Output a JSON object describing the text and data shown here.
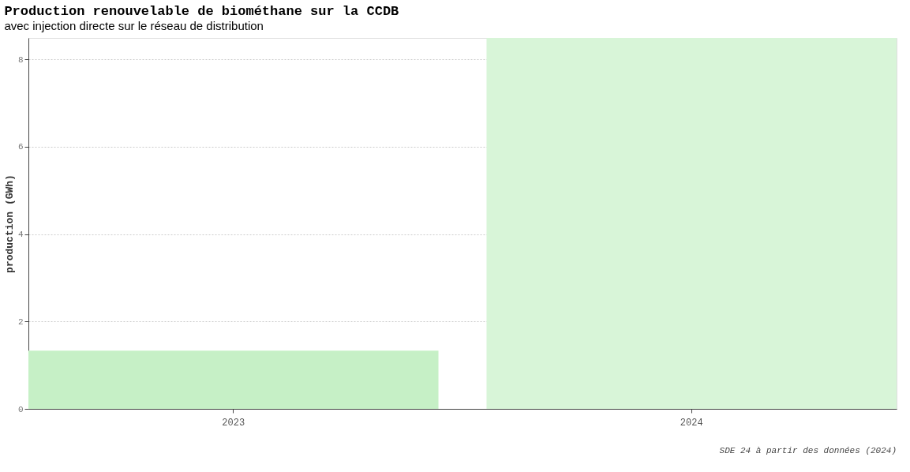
{
  "chart_data": {
    "type": "bar",
    "title": "Production renouvelable de biométhane sur la CCDB",
    "subtitle": "avec injection directe sur le réseau de distribution",
    "ylabel": "production (GWh)",
    "categories": [
      "2023",
      "2024"
    ],
    "values": [
      1.33,
      8.49
    ],
    "colors": [
      "#c6f0c6",
      "#d8f5d8"
    ],
    "ylim": [
      0,
      8.49
    ],
    "yticks": [
      0,
      2,
      4,
      6,
      8
    ],
    "grid": "y",
    "annotations": [
      "SDE 24 à partir des données (2024)"
    ]
  }
}
